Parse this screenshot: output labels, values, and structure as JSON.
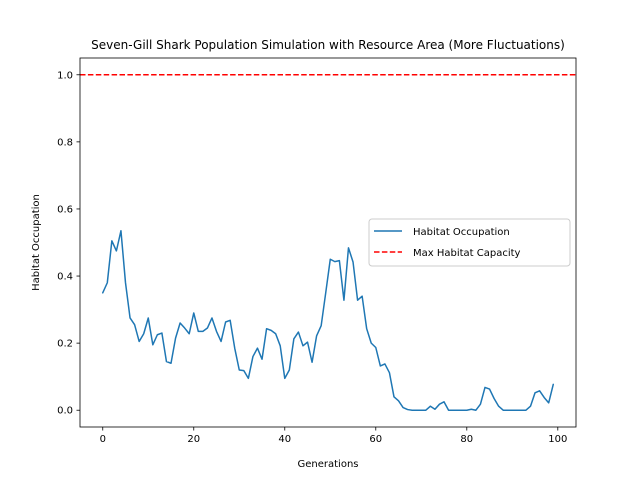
{
  "chart_data": {
    "type": "line",
    "title": "Seven-Gill Shark Population Simulation with Resource Area (More Fluctuations)",
    "xlabel": "Generations",
    "ylabel": "Habitat Occupation",
    "xlim": [
      -5,
      104
    ],
    "ylim": [
      -0.05,
      1.05
    ],
    "xticks": [
      0,
      20,
      40,
      60,
      80,
      100
    ],
    "yticks": [
      0.0,
      0.2,
      0.4,
      0.6,
      0.8,
      1.0
    ],
    "xtick_labels": [
      "0",
      "20",
      "40",
      "60",
      "80",
      "100"
    ],
    "ytick_labels": [
      "0.0",
      "0.2",
      "0.4",
      "0.6",
      "0.8",
      "1.0"
    ],
    "grid": false,
    "legend_position": "center-right",
    "series": [
      {
        "name": "Habitat Occupation",
        "color": "#1f77b4",
        "style": "solid",
        "x": [
          0,
          1,
          2,
          3,
          4,
          5,
          6,
          7,
          8,
          9,
          10,
          11,
          12,
          13,
          14,
          15,
          16,
          17,
          18,
          19,
          20,
          21,
          22,
          23,
          24,
          25,
          26,
          27,
          28,
          29,
          30,
          31,
          32,
          33,
          34,
          35,
          36,
          37,
          38,
          39,
          40,
          41,
          42,
          43,
          44,
          45,
          46,
          47,
          48,
          49,
          50,
          51,
          52,
          53,
          54,
          55,
          56,
          57,
          58,
          59,
          60,
          61,
          62,
          63,
          64,
          65,
          66,
          67,
          68,
          69,
          70,
          71,
          72,
          73,
          74,
          75,
          76,
          77,
          78,
          79,
          80,
          81,
          82,
          83,
          84,
          85,
          86,
          87,
          88,
          89,
          90,
          91,
          92,
          93,
          94,
          95,
          96,
          97,
          98,
          99
        ],
        "values": [
          0.35,
          0.38,
          0.505,
          0.475,
          0.535,
          0.38,
          0.275,
          0.255,
          0.205,
          0.228,
          0.275,
          0.195,
          0.225,
          0.23,
          0.145,
          0.14,
          0.215,
          0.26,
          0.245,
          0.228,
          0.29,
          0.235,
          0.235,
          0.245,
          0.275,
          0.235,
          0.205,
          0.263,
          0.268,
          0.185,
          0.12,
          0.118,
          0.095,
          0.16,
          0.185,
          0.152,
          0.243,
          0.238,
          0.228,
          0.192,
          0.095,
          0.12,
          0.213,
          0.233,
          0.192,
          0.203,
          0.143,
          0.222,
          0.252,
          0.35,
          0.45,
          0.443,
          0.446,
          0.328,
          0.484,
          0.442,
          0.328,
          0.34,
          0.243,
          0.2,
          0.187,
          0.132,
          0.138,
          0.112,
          0.04,
          0.028,
          0.008,
          0.002,
          0.0,
          0.0,
          0.0,
          0.0,
          0.012,
          0.003,
          0.018,
          0.025,
          0.0,
          0.0,
          0.0,
          0.0,
          0.0,
          0.003,
          0.0,
          0.018,
          0.068,
          0.063,
          0.035,
          0.012,
          0.0,
          0.0,
          0.0,
          0.0,
          0.0,
          0.0,
          0.012,
          0.052,
          0.058,
          0.038,
          0.022,
          0.077
        ]
      },
      {
        "name": "Max Habitat Capacity",
        "color": "#ff0000",
        "style": "dashed",
        "hline": 1.0
      }
    ]
  }
}
